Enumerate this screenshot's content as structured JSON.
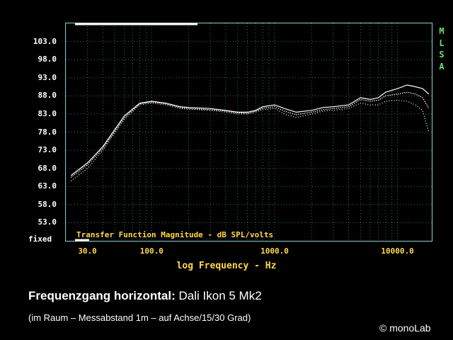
{
  "chart_data": {
    "type": "line",
    "title": "Transfer Function Magnitude - dB SPL/volts",
    "xlabel": "log Frequency - Hz",
    "ylabel": "",
    "x_scale": "log",
    "xlim": [
      20,
      19000
    ],
    "ylim": [
      48,
      108
    ],
    "yticks": [
      "103.0",
      "98.0",
      "93.0",
      "88.0",
      "83.0",
      "78.0",
      "73.0",
      "68.0",
      "63.0",
      "58.0",
      "53.0"
    ],
    "xticks": [
      "30.0",
      "100.0",
      "1000.0",
      "10000.0"
    ],
    "y_bottom_label": "fixed",
    "side_label": [
      "M",
      "L",
      "S",
      "A"
    ],
    "grid": true,
    "series": [
      {
        "x": [
          22,
          30,
          40,
          60,
          80,
          100,
          130,
          170,
          200,
          300,
          400,
          500,
          600,
          700,
          800,
          1000,
          1200,
          1500,
          2000,
          2500,
          3000,
          4000,
          5000,
          6000,
          7000,
          8000,
          10000,
          12000,
          14000,
          16000,
          18000
        ],
        "y": [
          66.0,
          69.5,
          74.0,
          82.5,
          86.0,
          86.5,
          86.0,
          85.0,
          84.8,
          84.5,
          84.0,
          83.5,
          83.5,
          84.0,
          85.0,
          85.5,
          84.5,
          83.5,
          84.0,
          84.8,
          85.0,
          85.5,
          87.5,
          87.0,
          87.5,
          89.0,
          90.0,
          91.0,
          90.5,
          90.0,
          88.5
        ]
      },
      {
        "x": [
          22,
          30,
          40,
          60,
          80,
          100,
          130,
          170,
          200,
          300,
          400,
          500,
          600,
          700,
          800,
          1000,
          1200,
          1500,
          2000,
          2500,
          3000,
          4000,
          5000,
          6000,
          7000,
          8000,
          10000,
          12000,
          14000,
          16000,
          18000
        ],
        "y": [
          65.5,
          69.0,
          73.5,
          82.0,
          85.8,
          86.3,
          85.8,
          84.8,
          84.5,
          84.2,
          83.8,
          83.3,
          83.2,
          83.8,
          84.6,
          85.0,
          83.8,
          82.8,
          83.5,
          84.2,
          84.5,
          85.0,
          87.0,
          86.5,
          86.8,
          88.0,
          88.5,
          89.0,
          88.5,
          87.5,
          84.5
        ]
      },
      {
        "x": [
          22,
          30,
          40,
          60,
          80,
          100,
          130,
          170,
          200,
          300,
          400,
          500,
          600,
          700,
          800,
          1000,
          1200,
          1500,
          2000,
          2500,
          3000,
          4000,
          5000,
          6000,
          7000,
          8000,
          10000,
          12000,
          14000,
          16000,
          18000
        ],
        "y": [
          64.5,
          68.0,
          73.0,
          81.5,
          85.5,
          86.0,
          85.5,
          84.5,
          84.3,
          84.0,
          83.5,
          83.0,
          83.0,
          83.5,
          84.2,
          84.5,
          83.0,
          82.0,
          83.0,
          83.8,
          84.0,
          84.5,
          86.0,
          85.5,
          85.5,
          86.5,
          86.8,
          86.5,
          85.5,
          84.0,
          78.0
        ]
      }
    ]
  },
  "side_label": [
    "M",
    "L",
    "S",
    "A"
  ],
  "caption": {
    "title_bold": "Frequenzgang horizontal:",
    "title_rest": "Dali Ikon 5 Mk2",
    "subtitle": "(im Raum – Messabstand 1m – auf Achse/15/30 Grad)",
    "copyright": "© monoLab"
  },
  "colors": {
    "background": "#000000",
    "frame": "#8fd3d3",
    "grid": "#2f6f6f",
    "axis_text": "#ffffff",
    "x_text": "#ffd84a",
    "side_text": "#6fe06f",
    "curve": "#ffffff"
  }
}
